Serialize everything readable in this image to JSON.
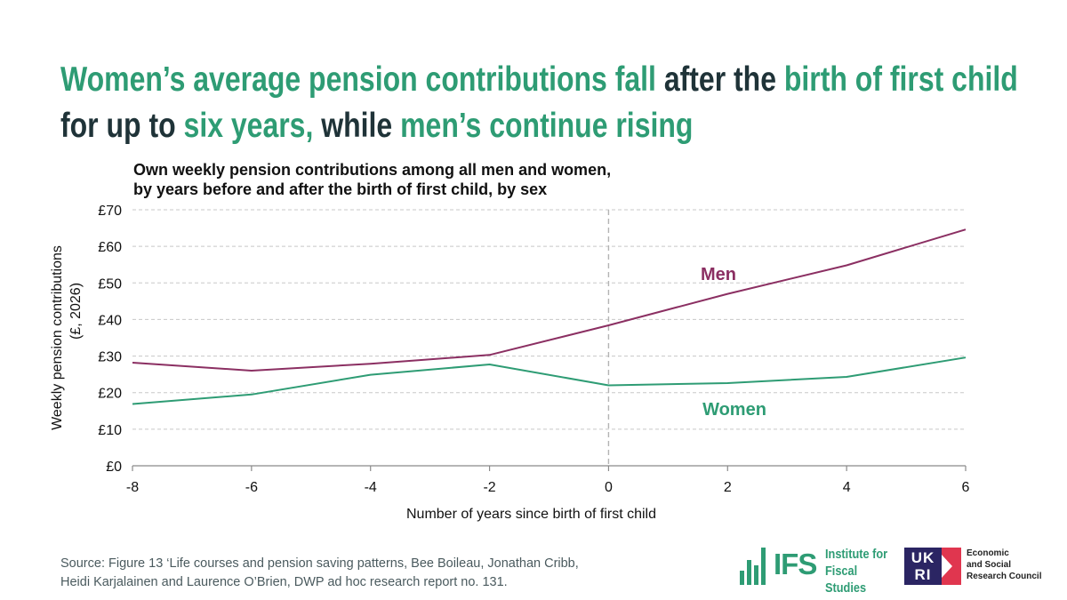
{
  "headline": {
    "line1": [
      {
        "text": "Women’s average pension contributions fall ",
        "tone": "green"
      },
      {
        "text": "after the ",
        "tone": "dark"
      },
      {
        "text": "birth of first child",
        "tone": "green"
      }
    ],
    "line2": [
      {
        "text": "for up to ",
        "tone": "dark"
      },
      {
        "text": "six years, ",
        "tone": "green"
      },
      {
        "text": "while ",
        "tone": "dark"
      },
      {
        "text": "men’s continue rising",
        "tone": "green"
      }
    ]
  },
  "subtitle_line1": "Own weekly pension contributions among all men and women,",
  "subtitle_line2": "by years before and after the birth of first child, by sex",
  "chart_data": {
    "type": "line",
    "x": [
      -8,
      -6,
      -4,
      -2,
      0,
      2,
      4,
      6
    ],
    "series": [
      {
        "name": "Men",
        "color": "#8b2f62",
        "values": [
          28.2,
          26.0,
          27.9,
          30.3,
          38.4,
          47.0,
          54.8,
          64.6
        ]
      },
      {
        "name": "Women",
        "color": "#2e9c74",
        "values": [
          16.9,
          19.5,
          24.9,
          27.7,
          22.0,
          22.6,
          24.3,
          29.6
        ]
      }
    ],
    "xlabel": "Number of years since birth of first child",
    "ylabel_line1": "Weekly pension contributions",
    "ylabel_line2": "(£, 2026)",
    "xlim": [
      -8,
      6
    ],
    "ylim": [
      0,
      70
    ],
    "xticks": [
      -8,
      -6,
      -4,
      -2,
      0,
      2,
      4,
      6
    ],
    "yticks": [
      0,
      10,
      20,
      30,
      40,
      50,
      60,
      70
    ],
    "ytick_labels": [
      "£0",
      "£10",
      "£20",
      "£30",
      "£40",
      "£50",
      "£60",
      "£70"
    ],
    "reference_line_x": 0,
    "grid": "horizontal dashed",
    "legend": "inline labels"
  },
  "source_line1": "Source: Figure 13 ‘Life courses and pension saving patterns, Bee Boileau, Jonathan Cribb,",
  "source_line2": "Heidi Karjalainen and Laurence O’Brien, DWP ad hoc research report no. 131.",
  "logos": {
    "ifs_letters": "IFS",
    "ifs_name_line1": "Institute for",
    "ifs_name_line2": "Fiscal Studies",
    "ukri_box_line1": "UK",
    "ukri_box_line2": "RI",
    "esrc_line1": "Economic",
    "esrc_line2": "and Social",
    "esrc_line3": "Research Council"
  },
  "colors": {
    "green": "#2e9c74",
    "dark": "#1f3338",
    "men": "#8b2f62",
    "ukri_navy": "#2b2563",
    "ukri_red": "#e0364f"
  }
}
